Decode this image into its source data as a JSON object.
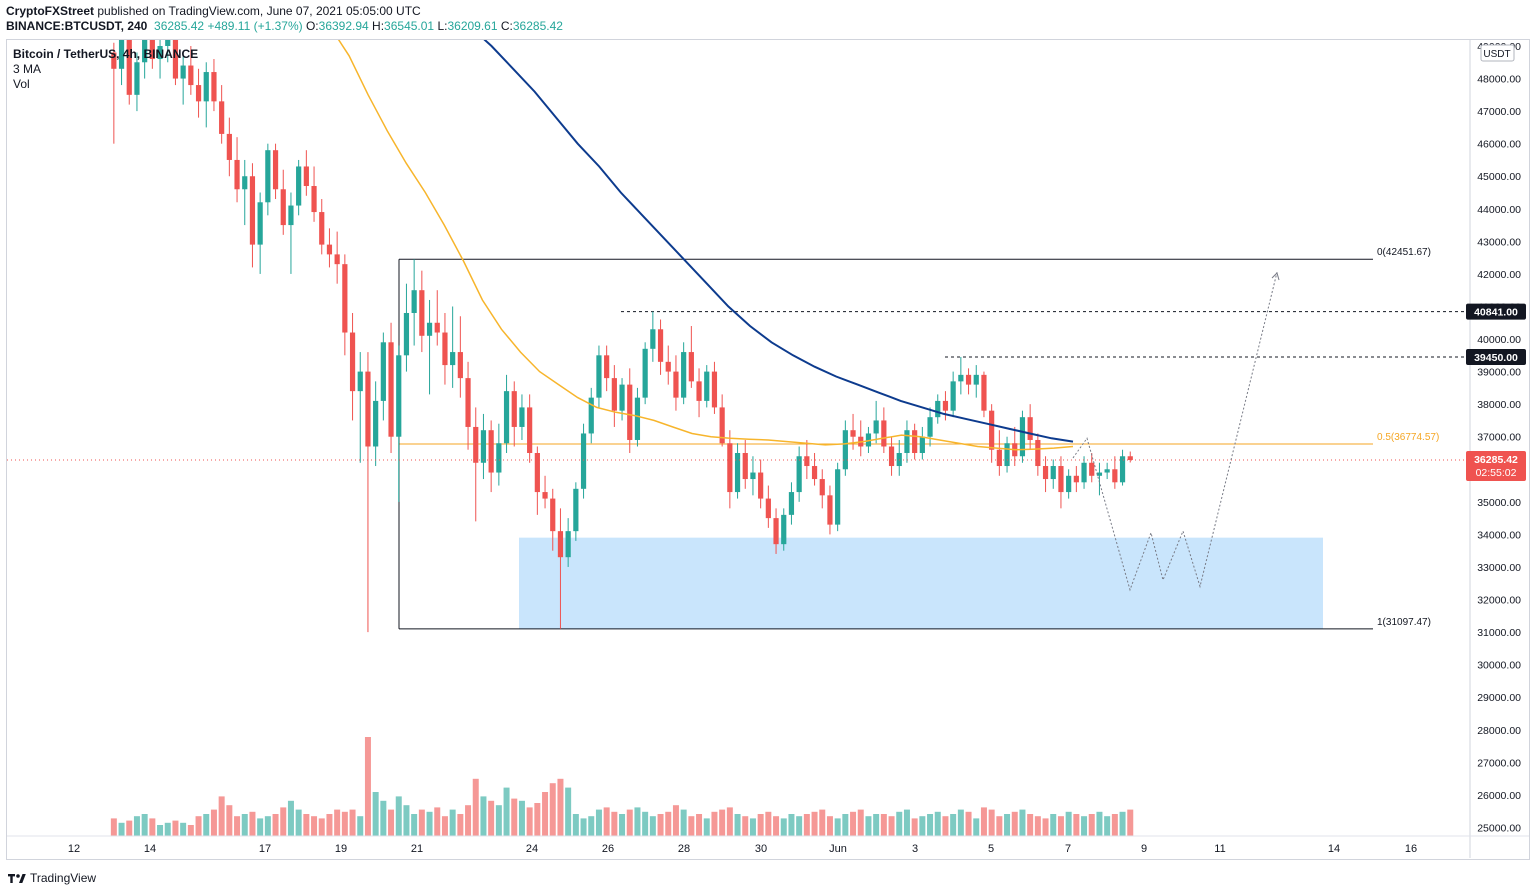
{
  "header": {
    "publisher": "CryptoFXStreet",
    "published_text": "published on TradingView.com, June 07, 2021 05:05:00 UTC",
    "symbol": "BINANCE:BTCUSDT, 240",
    "price": "36285.42",
    "change": "+489.11 (+1.37%)",
    "open_label": "O:",
    "open": "36392.94",
    "high_label": "H:",
    "high": "36545.01",
    "low_label": "L:",
    "low": "36209.61",
    "close_label": "C:",
    "close": "36285.42"
  },
  "legend": {
    "title": "Bitcoin / TetherUS, 4h, BINANCE",
    "ma": "3 MA",
    "vol": "Vol"
  },
  "footer": {
    "brand": "TradingView"
  },
  "colors": {
    "up": "#26a69a",
    "down": "#ef5350",
    "ma_fast": "#f7b52c",
    "ma_slow": "#0d3b8e",
    "zone": "#bbdefb",
    "fib_mid": "#f5a623"
  },
  "chart_data": {
    "type": "candlestick",
    "y_unit": "USDT",
    "ylim": [
      24700,
      49300
    ],
    "y_ticks": [
      25000,
      26000,
      27000,
      28000,
      29000,
      30000,
      31000,
      32000,
      33000,
      34000,
      35000,
      36000,
      37000,
      38000,
      39000,
      40000,
      41000,
      42000,
      43000,
      44000,
      45000,
      46000,
      47000,
      48000,
      49000
    ],
    "x_ticks": [
      "12",
      "14",
      "17",
      "19",
      "21",
      "24",
      "26",
      "28",
      "30",
      "Jun",
      "3",
      "5",
      "7",
      "9",
      "11",
      "14",
      "16"
    ],
    "current_price": {
      "label": "36285.42",
      "countdown": "02:55:02",
      "value": 36285.42
    },
    "levels": [
      {
        "label": "40841.00",
        "value": 40841
      },
      {
        "label": "39450.00",
        "value": 39450
      }
    ],
    "fibonacci": [
      {
        "label": "0(42451.67)",
        "value": 42451.67
      },
      {
        "label": "0.5(36774.57)",
        "value": 36774.57
      },
      {
        "label": "1(31097.47)",
        "value": 31097.47
      }
    ],
    "demand_zone": {
      "from": 31097,
      "to": 33900
    },
    "projection": [
      36350,
      36950,
      32300,
      34050,
      32600,
      34100,
      32400,
      42050
    ],
    "ma_fast": [
      49600,
      48700,
      47500,
      46400,
      45400,
      44500,
      43500,
      42400,
      41200,
      40300,
      39600,
      39000,
      38600,
      38200,
      37900,
      37750,
      37650,
      37500,
      37300,
      37100,
      37000,
      36950,
      36920,
      36900,
      36850,
      36800,
      36750,
      36780,
      36850,
      36950,
      37050,
      37000,
      36900,
      36800,
      36700,
      36650,
      36600,
      36620,
      36650,
      36700
    ],
    "ma_slow": [
      49600,
      49000,
      48300,
      47600,
      46800,
      46000,
      45300,
      44500,
      43800,
      43100,
      42400,
      41700,
      41000,
      40400,
      39900,
      39500,
      39150,
      38850,
      38600,
      38350,
      38100,
      37900,
      37700,
      37550,
      37400,
      37250,
      37100,
      36950,
      36850
    ],
    "candles": [
      [
        48800,
        49100,
        46000,
        48300
      ],
      [
        48300,
        49800,
        47800,
        49300
      ],
      [
        49300,
        49600,
        47200,
        47500
      ],
      [
        47500,
        48800,
        47000,
        48500
      ],
      [
        48500,
        49900,
        48000,
        49600
      ],
      [
        49600,
        49800,
        48300,
        48600
      ],
      [
        48600,
        49500,
        48000,
        49000
      ],
      [
        49000,
        49600,
        48500,
        49200
      ],
      [
        49200,
        49400,
        47800,
        48000
      ],
      [
        48000,
        48700,
        47200,
        48400
      ],
      [
        48400,
        49000,
        47500,
        47800
      ],
      [
        47800,
        48300,
        46800,
        47300
      ],
      [
        47300,
        48500,
        46500,
        48200
      ],
      [
        48200,
        48600,
        47000,
        47300
      ],
      [
        47300,
        47800,
        46000,
        46300
      ],
      [
        46300,
        46800,
        45000,
        45500
      ],
      [
        45500,
        46200,
        44200,
        44600
      ],
      [
        44600,
        45500,
        43500,
        45000
      ],
      [
        45000,
        45400,
        42200,
        42900
      ],
      [
        42900,
        44500,
        42000,
        44200
      ],
      [
        44200,
        46000,
        43800,
        45800
      ],
      [
        45800,
        46000,
        44300,
        44600
      ],
      [
        44600,
        45200,
        43200,
        43500
      ],
      [
        43500,
        44500,
        42000,
        44100
      ],
      [
        44100,
        45500,
        43800,
        45300
      ],
      [
        45300,
        45800,
        44400,
        44700
      ],
      [
        44700,
        45300,
        43600,
        43900
      ],
      [
        43900,
        44300,
        42600,
        42900
      ],
      [
        42900,
        43400,
        42200,
        42600
      ],
      [
        42600,
        43300,
        41700,
        42300
      ],
      [
        42300,
        42600,
        39500,
        40200
      ],
      [
        40200,
        40800,
        37500,
        38400
      ],
      [
        38400,
        39600,
        36200,
        39000
      ],
      [
        39000,
        39600,
        31000,
        36700
      ],
      [
        36700,
        38700,
        36100,
        38100
      ],
      [
        38100,
        40200,
        37500,
        39900
      ],
      [
        39900,
        40500,
        36500,
        37000
      ],
      [
        37000,
        39800,
        35000,
        39500
      ],
      [
        39500,
        41700,
        39000,
        40800
      ],
      [
        40800,
        42450,
        39800,
        41500
      ],
      [
        41500,
        42100,
        39600,
        40100
      ],
      [
        40100,
        41200,
        38300,
        40500
      ],
      [
        40500,
        41500,
        39800,
        40200
      ],
      [
        40200,
        40800,
        38600,
        39200
      ],
      [
        39200,
        41000,
        38500,
        39600
      ],
      [
        39600,
        40700,
        38200,
        38800
      ],
      [
        38800,
        39300,
        36600,
        37300
      ],
      [
        37300,
        37900,
        34400,
        36200
      ],
      [
        36200,
        37700,
        35700,
        37200
      ],
      [
        37200,
        37500,
        35300,
        35900
      ],
      [
        35900,
        37400,
        35500,
        36800
      ],
      [
        36800,
        38900,
        36500,
        38400
      ],
      [
        38400,
        38700,
        36700,
        37300
      ],
      [
        37300,
        38300,
        36900,
        37900
      ],
      [
        37900,
        38300,
        36200,
        36500
      ],
      [
        36500,
        36700,
        34600,
        35300
      ],
      [
        35300,
        35800,
        34800,
        35100
      ],
      [
        35100,
        35400,
        33500,
        34100
      ],
      [
        34100,
        34800,
        31100,
        33300
      ],
      [
        33300,
        34500,
        33000,
        34100
      ],
      [
        34100,
        35600,
        33800,
        35400
      ],
      [
        35400,
        37400,
        35100,
        37100
      ],
      [
        37100,
        38500,
        36800,
        38200
      ],
      [
        38200,
        39800,
        37900,
        39500
      ],
      [
        39500,
        39800,
        38400,
        38800
      ],
      [
        38800,
        39200,
        37300,
        37800
      ],
      [
        37800,
        38800,
        37500,
        38600
      ],
      [
        38600,
        39100,
        36500,
        36900
      ],
      [
        36900,
        38500,
        36700,
        38200
      ],
      [
        38200,
        39900,
        38000,
        39700
      ],
      [
        39700,
        40841,
        39300,
        40300
      ],
      [
        40300,
        40600,
        38900,
        39300
      ],
      [
        39300,
        39800,
        38600,
        39000
      ],
      [
        39000,
        39500,
        37800,
        38200
      ],
      [
        38200,
        39900,
        38000,
        39600
      ],
      [
        39600,
        40400,
        38500,
        38700
      ],
      [
        38700,
        39100,
        37600,
        38100
      ],
      [
        38100,
        39200,
        37900,
        39000
      ],
      [
        39000,
        39300,
        37700,
        37900
      ],
      [
        37900,
        38300,
        36700,
        36800
      ],
      [
        36800,
        37200,
        34800,
        35300
      ],
      [
        35300,
        36800,
        35100,
        36500
      ],
      [
        36500,
        36900,
        35400,
        35700
      ],
      [
        35700,
        36400,
        35200,
        35900
      ],
      [
        35900,
        36300,
        34800,
        35100
      ],
      [
        35100,
        35500,
        34200,
        34500
      ],
      [
        34500,
        34800,
        33400,
        33700
      ],
      [
        33700,
        34800,
        33500,
        34600
      ],
      [
        34600,
        35600,
        34300,
        35300
      ],
      [
        35300,
        36700,
        35000,
        36400
      ],
      [
        36400,
        36900,
        35700,
        36100
      ],
      [
        36100,
        36500,
        35500,
        35700
      ],
      [
        35700,
        36000,
        34800,
        35200
      ],
      [
        35200,
        35500,
        34000,
        34300
      ],
      [
        34300,
        36200,
        34100,
        36000
      ],
      [
        36000,
        37500,
        35800,
        37200
      ],
      [
        37200,
        37700,
        36600,
        37000
      ],
      [
        37000,
        37500,
        36400,
        36700
      ],
      [
        36700,
        37300,
        36500,
        37100
      ],
      [
        37100,
        38100,
        36800,
        37500
      ],
      [
        37500,
        37900,
        36500,
        36700
      ],
      [
        36700,
        37000,
        35800,
        36100
      ],
      [
        36100,
        36900,
        35800,
        36500
      ],
      [
        36500,
        37500,
        36200,
        37200
      ],
      [
        37200,
        37400,
        36300,
        36500
      ],
      [
        36500,
        37300,
        36300,
        37000
      ],
      [
        37000,
        37900,
        36700,
        37600
      ],
      [
        37600,
        38300,
        37400,
        38100
      ],
      [
        38100,
        38400,
        37500,
        37800
      ],
      [
        37800,
        39000,
        37600,
        38700
      ],
      [
        38700,
        39450,
        38300,
        38900
      ],
      [
        38900,
        39100,
        38300,
        38600
      ],
      [
        38600,
        39200,
        38200,
        38900
      ],
      [
        38900,
        39000,
        37600,
        37800
      ],
      [
        37800,
        38000,
        36200,
        36600
      ],
      [
        36600,
        37200,
        35800,
        36100
      ],
      [
        36100,
        37000,
        35900,
        36800
      ],
      [
        36800,
        37300,
        36100,
        36400
      ],
      [
        36400,
        37800,
        36200,
        37600
      ],
      [
        37600,
        38000,
        36600,
        36900
      ],
      [
        36900,
        37100,
        35800,
        36100
      ],
      [
        36100,
        36400,
        35300,
        35700
      ],
      [
        35700,
        36300,
        35400,
        36100
      ],
      [
        36100,
        36400,
        34800,
        35300
      ],
      [
        35300,
        36000,
        35100,
        35800
      ],
      [
        35800,
        36100,
        35300,
        35600
      ],
      [
        35600,
        36400,
        35400,
        36200
      ],
      [
        36200,
        36500,
        35600,
        35800
      ],
      [
        35800,
        36200,
        35200,
        35900
      ],
      [
        35900,
        36200,
        35700,
        36000
      ],
      [
        36000,
        36400,
        35400,
        35600
      ],
      [
        35600,
        36600,
        35500,
        36400
      ],
      [
        36400,
        36545,
        36209,
        36285
      ]
    ],
    "volume": [
      8,
      6,
      7,
      9,
      10,
      8,
      5,
      6,
      7,
      6,
      5,
      9,
      10,
      12,
      18,
      14,
      9,
      10,
      11,
      8,
      9,
      10,
      13,
      16,
      12,
      10,
      9,
      8,
      10,
      12,
      11,
      12,
      9,
      45,
      20,
      16,
      12,
      18,
      14,
      10,
      12,
      11,
      13,
      9,
      12,
      10,
      14,
      26,
      18,
      16,
      14,
      22,
      17,
      16,
      13,
      15,
      20,
      24,
      26,
      22,
      10,
      8,
      9,
      12,
      13,
      11,
      10,
      12,
      13,
      11,
      9,
      10,
      11,
      14,
      12,
      9,
      10,
      8,
      11,
      12,
      13,
      10,
      9,
      8,
      10,
      11,
      9,
      8,
      10,
      9,
      10,
      11,
      12,
      9,
      8,
      10,
      11,
      12,
      9,
      10,
      10,
      9,
      11,
      12,
      8,
      9,
      10,
      11,
      9,
      10,
      12,
      11,
      8,
      13,
      12,
      9,
      10,
      11,
      12,
      10,
      9,
      8,
      10,
      9,
      11,
      10,
      9,
      10,
      11,
      9,
      10,
      11,
      12,
      1
    ]
  }
}
